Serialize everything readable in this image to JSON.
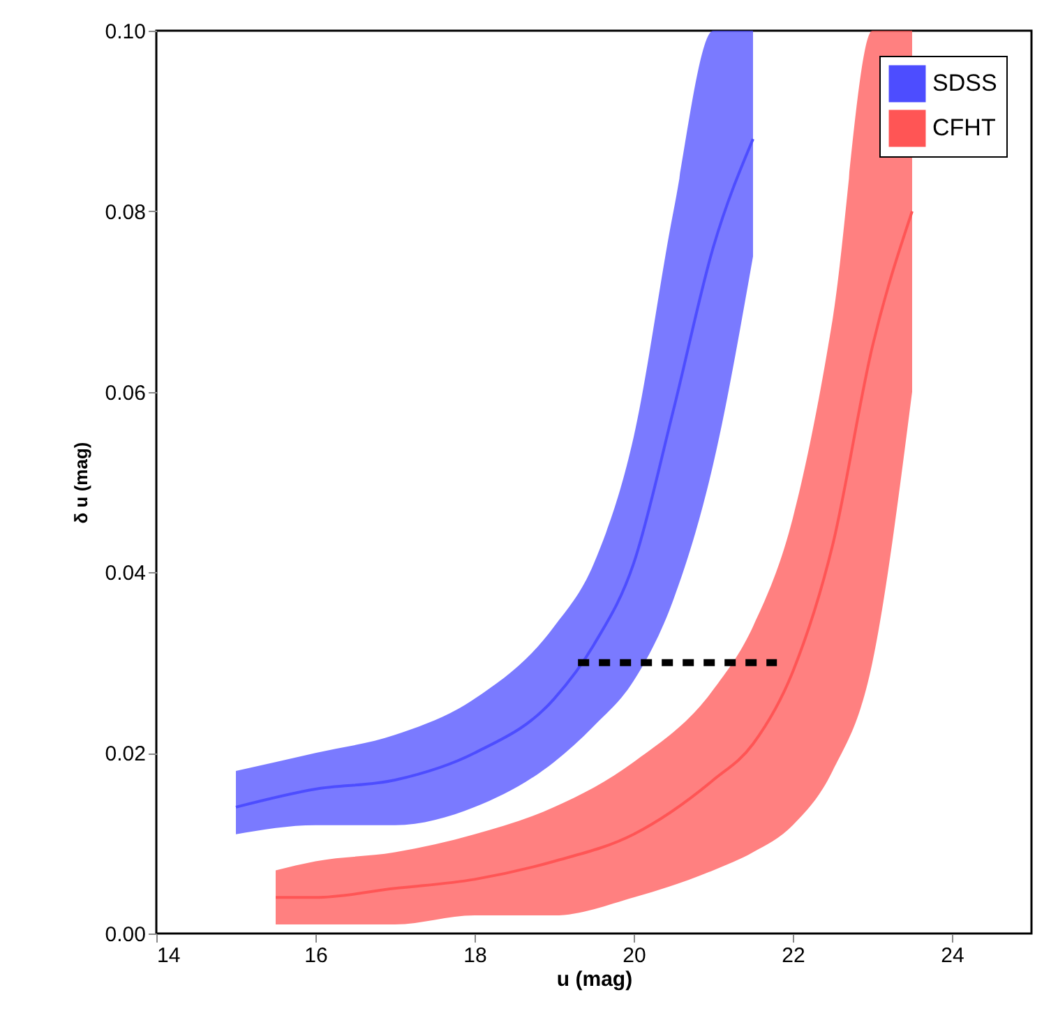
{
  "chart_data": {
    "type": "line",
    "xlabel": "u (mag)",
    "ylabel": "δ u (mag)",
    "xlim": [
      14,
      25
    ],
    "ylim": [
      0,
      0.1
    ],
    "xticks": [
      14,
      16,
      18,
      20,
      22,
      24
    ],
    "yticks": [
      {
        "value": 0,
        "label": "0.00"
      },
      {
        "value": 0.02,
        "label": "0.02"
      },
      {
        "value": 0.04,
        "label": "0.04"
      },
      {
        "value": 0.06,
        "label": "0.06"
      },
      {
        "value": 0.08,
        "label": "0.08"
      },
      {
        "value": 0.1,
        "label": "0.10"
      }
    ],
    "grid": false,
    "legend": "top right",
    "marker": "none",
    "series": [
      {
        "name": "SDSS",
        "color": "#4d4dff",
        "x": [
          15,
          16,
          17,
          18,
          19,
          19.5,
          20,
          20.5,
          21,
          21.5
        ],
        "values": [
          0.014,
          0.016,
          0.017,
          0.02,
          0.026,
          0.032,
          0.041,
          0.058,
          0.076,
          0.088
        ],
        "lower": [
          0.011,
          0.012,
          0.012,
          0.014,
          0.019,
          0.023,
          0.028,
          0.037,
          0.052,
          0.075
        ],
        "upper": [
          0.018,
          0.02,
          0.022,
          0.026,
          0.034,
          0.041,
          0.055,
          0.08,
          0.1,
          0.1
        ]
      },
      {
        "name": "CFHT",
        "color": "#ff5555",
        "x": [
          15.5,
          16,
          17,
          18,
          19,
          20,
          21,
          21.5,
          22,
          22.5,
          23,
          23.5
        ],
        "values": [
          0.004,
          0.004,
          0.005,
          0.006,
          0.008,
          0.011,
          0.017,
          0.021,
          0.029,
          0.043,
          0.065,
          0.08
        ],
        "lower": [
          0.001,
          0.001,
          0.001,
          0.002,
          0.002,
          0.004,
          0.007,
          0.009,
          0.012,
          0.018,
          0.03,
          0.06
        ],
        "upper": [
          0.007,
          0.008,
          0.009,
          0.011,
          0.014,
          0.019,
          0.027,
          0.034,
          0.046,
          0.068,
          0.1,
          0.1
        ]
      },
      {
        "color": "#000000",
        "line_style": "dashed",
        "x": [
          19.3,
          21.8
        ],
        "values": [
          0.03,
          0.03
        ]
      }
    ]
  }
}
